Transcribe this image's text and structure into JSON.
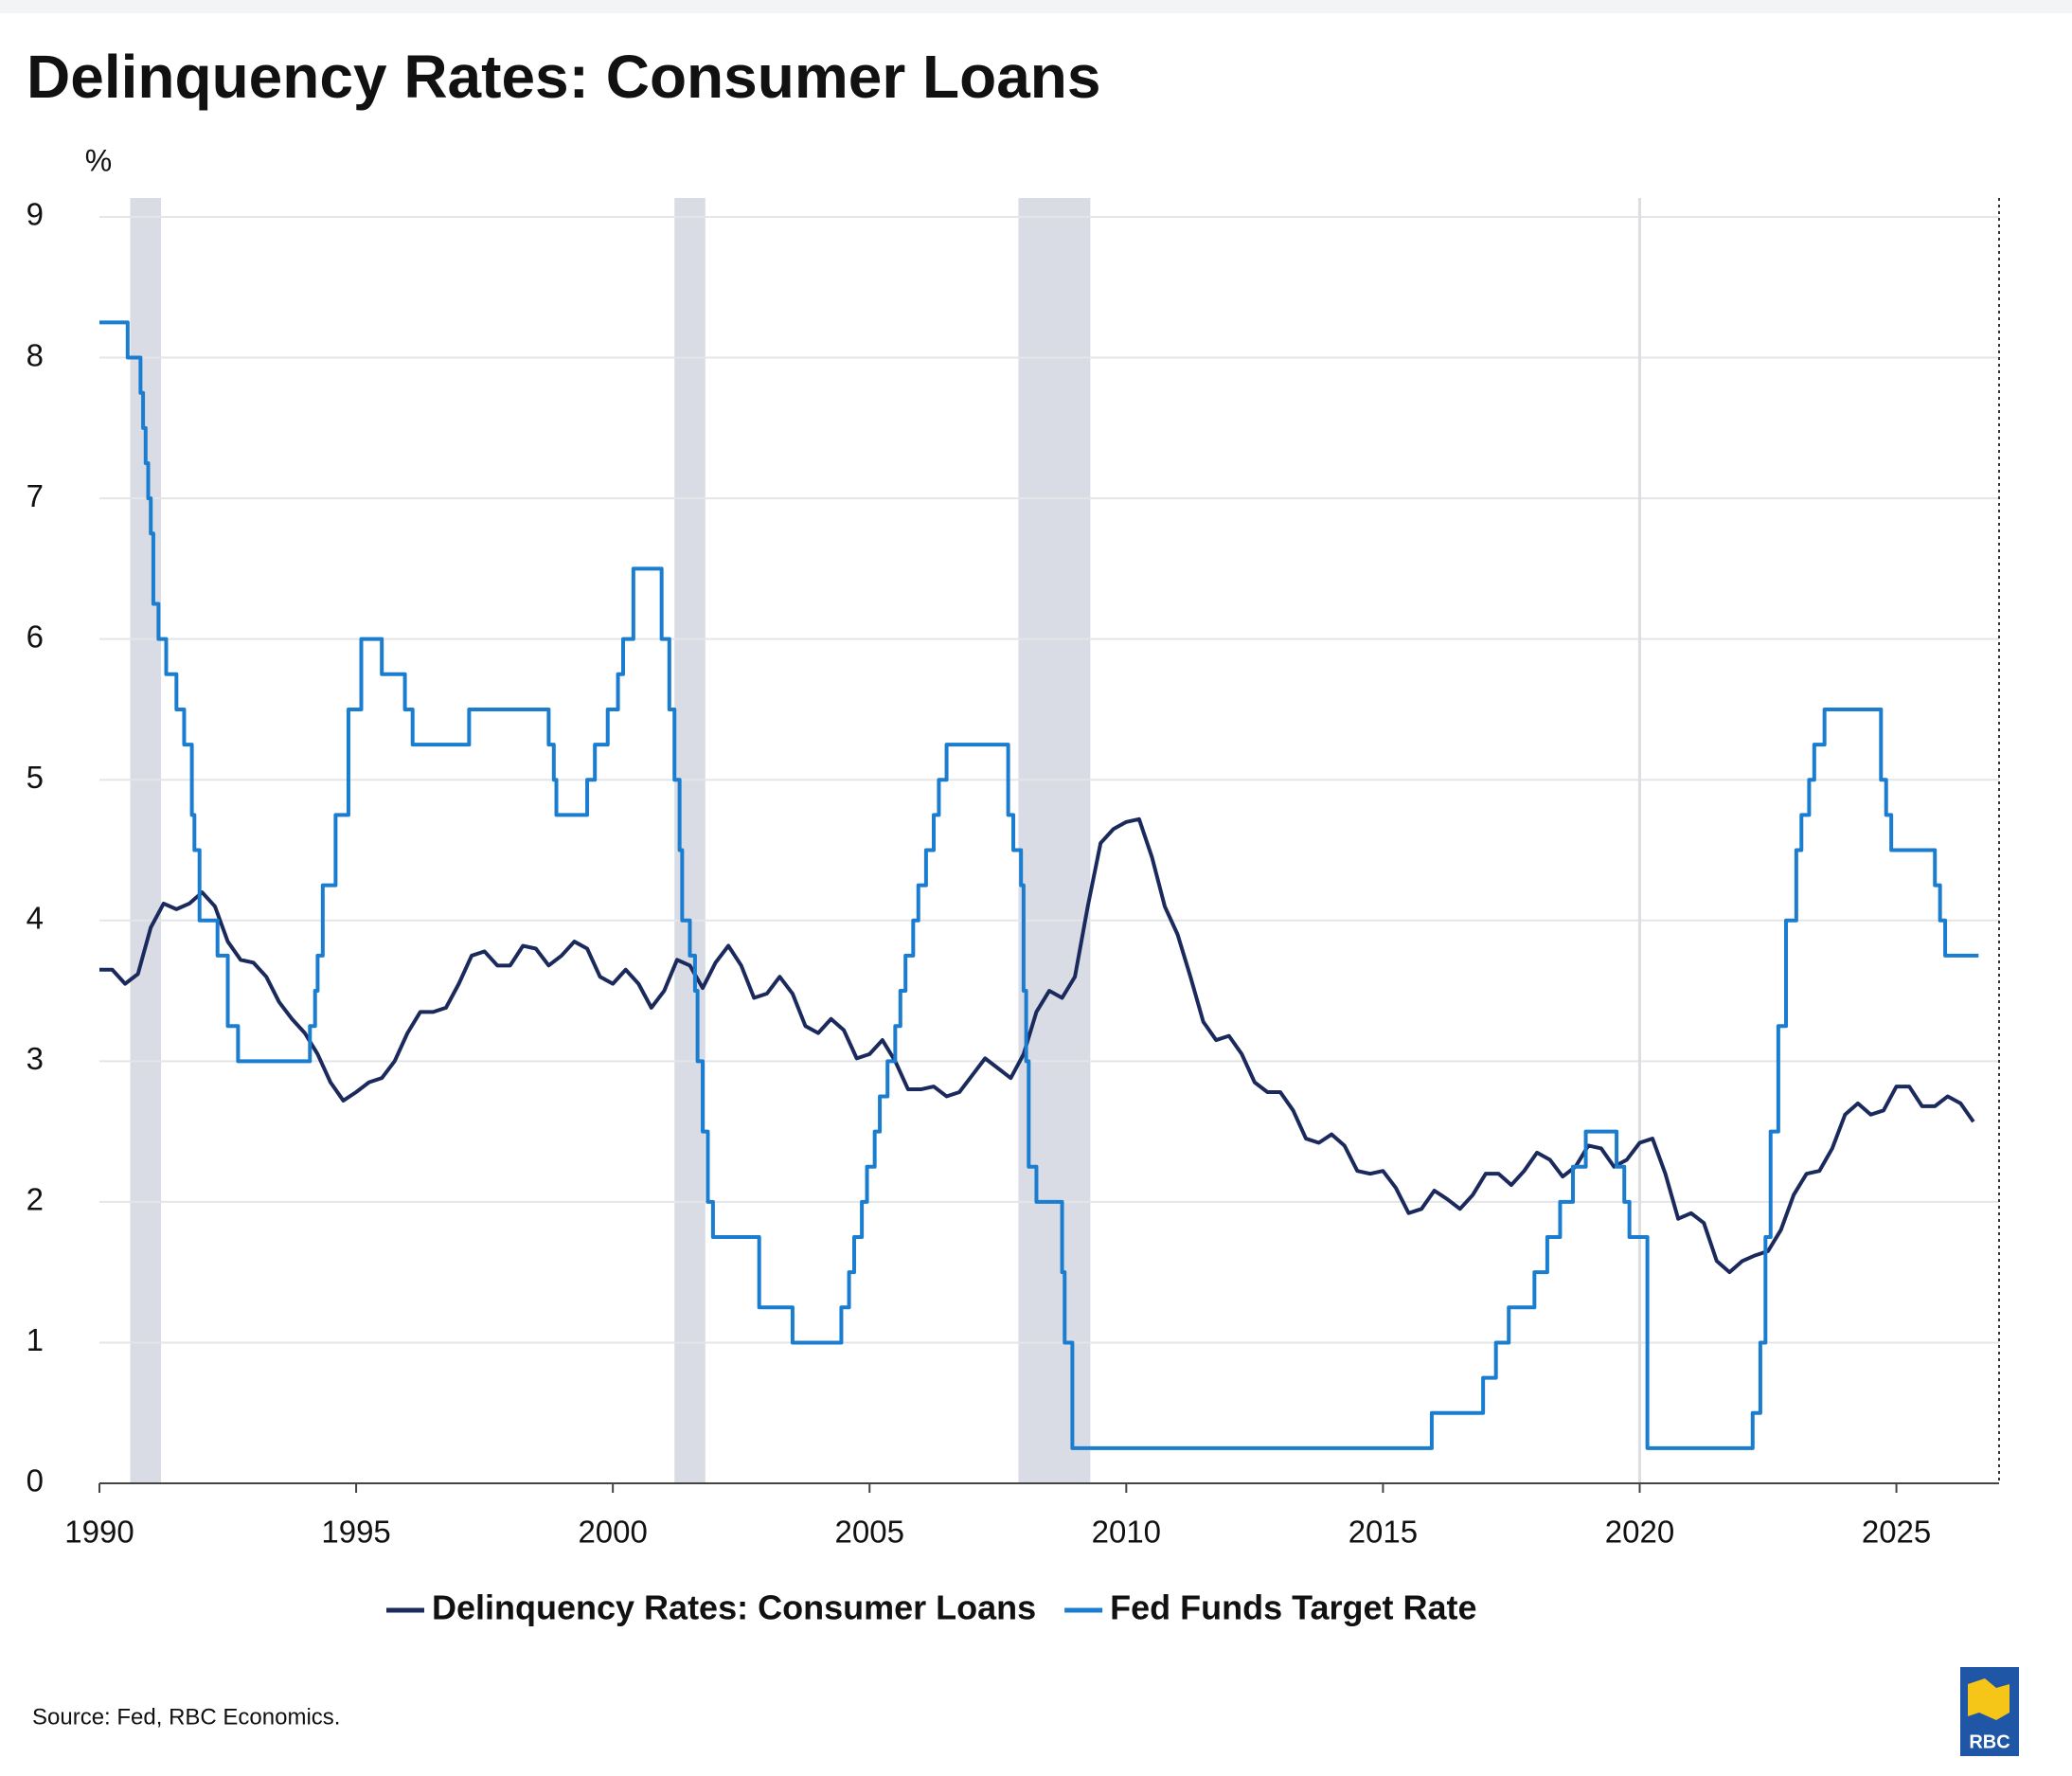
{
  "chart_data": {
    "type": "line",
    "title": "Delinquency Rates: Consumer Loans",
    "y_label": "%",
    "source": "Source: Fed, RBC Economics.",
    "logo": "RBC",
    "xlim": [
      1990,
      2027
    ],
    "xticks": [
      1990,
      1995,
      2000,
      2005,
      2010,
      2015,
      2020,
      2025
    ],
    "ylim": [
      0,
      9
    ],
    "yticks": [
      0,
      1,
      2,
      3,
      4,
      5,
      6,
      7,
      8,
      9
    ],
    "grid": true,
    "legend": "bottom",
    "shading_color": "#d9dce4",
    "recessions": [
      [
        1990.6,
        1991.2
      ],
      [
        2001.2,
        2001.8
      ],
      [
        2007.9,
        2009.3
      ]
    ],
    "vline": 2020,
    "series": [
      {
        "name": "Delinquency Rates: Consumer Loans",
        "color": "#1b2a5c",
        "x": [
          1990,
          1990.25,
          1990.5,
          1990.75,
          1991,
          1991.25,
          1991.5,
          1991.75,
          1992,
          1992.25,
          1992.5,
          1992.75,
          1993,
          1993.25,
          1993.5,
          1993.75,
          1994,
          1994.25,
          1994.5,
          1994.75,
          1995,
          1995.25,
          1995.5,
          1995.75,
          1996,
          1996.25,
          1996.5,
          1996.75,
          1997,
          1997.25,
          1997.5,
          1997.75,
          1998,
          1998.25,
          1998.5,
          1998.75,
          1999,
          1999.25,
          1999.5,
          1999.75,
          2000,
          2000.25,
          2000.5,
          2000.75,
          2001,
          2001.25,
          2001.5,
          2001.75,
          2002,
          2002.25,
          2002.5,
          2002.75,
          2003,
          2003.25,
          2003.5,
          2003.75,
          2004,
          2004.25,
          2004.5,
          2004.75,
          2005,
          2005.25,
          2005.5,
          2005.75,
          2006,
          2006.25,
          2006.5,
          2006.75,
          2007,
          2007.25,
          2007.5,
          2007.75,
          2008,
          2008.25,
          2008.5,
          2008.75,
          2009,
          2009.25,
          2009.5,
          2009.75,
          2010,
          2010.25,
          2010.5,
          2010.75,
          2011,
          2011.25,
          2011.5,
          2011.75,
          2012,
          2012.25,
          2012.5,
          2012.75,
          2013,
          2013.25,
          2013.5,
          2013.75,
          2014,
          2014.25,
          2014.5,
          2014.75,
          2015,
          2015.25,
          2015.5,
          2015.75,
          2016,
          2016.25,
          2016.5,
          2016.75,
          2017,
          2017.25,
          2017.5,
          2017.75,
          2018,
          2018.25,
          2018.5,
          2018.75,
          2019,
          2019.25,
          2019.5,
          2019.75,
          2020,
          2020.25,
          2020.5,
          2020.75,
          2021,
          2021.25,
          2021.5,
          2021.75,
          2022,
          2022.25,
          2022.5,
          2022.75,
          2023,
          2023.25,
          2023.5,
          2023.75,
          2024,
          2024.25,
          2024.5,
          2024.75,
          2025,
          2025.25,
          2025.5,
          2025.75,
          2026,
          2026.25,
          2026.5
        ],
        "values": [
          3.65,
          3.65,
          3.55,
          3.62,
          3.95,
          4.12,
          4.08,
          4.12,
          4.2,
          4.1,
          3.85,
          3.72,
          3.7,
          3.6,
          3.42,
          3.3,
          3.2,
          3.05,
          2.85,
          2.72,
          2.78,
          2.85,
          2.88,
          3.0,
          3.2,
          3.35,
          3.35,
          3.38,
          3.55,
          3.75,
          3.78,
          3.68,
          3.68,
          3.82,
          3.8,
          3.68,
          3.75,
          3.85,
          3.8,
          3.6,
          3.55,
          3.65,
          3.55,
          3.38,
          3.5,
          3.72,
          3.68,
          3.52,
          3.7,
          3.82,
          3.68,
          3.45,
          3.48,
          3.6,
          3.48,
          3.25,
          3.2,
          3.3,
          3.22,
          3.02,
          3.05,
          3.15,
          3.0,
          2.8,
          2.8,
          2.82,
          2.75,
          2.78,
          2.9,
          3.02,
          2.95,
          2.88,
          3.05,
          3.35,
          3.5,
          3.45,
          3.6,
          4.1,
          4.55,
          4.65,
          4.7,
          4.72,
          4.45,
          4.1,
          3.9,
          3.6,
          3.28,
          3.15,
          3.18,
          3.05,
          2.85,
          2.78,
          2.78,
          2.65,
          2.45,
          2.42,
          2.48,
          2.4,
          2.22,
          2.2,
          2.22,
          2.1,
          1.92,
          1.95,
          2.08,
          2.02,
          1.95,
          2.05,
          2.2,
          2.2,
          2.12,
          2.22,
          2.35,
          2.3,
          2.18,
          2.25,
          2.4,
          2.38,
          2.25,
          2.3,
          2.42,
          2.45,
          2.2,
          1.88,
          1.92,
          1.85,
          1.58,
          1.5,
          1.58,
          1.62,
          1.65,
          1.8,
          2.05,
          2.2,
          2.22,
          2.38,
          2.62,
          2.7,
          2.62,
          2.65,
          2.82,
          2.82,
          2.68,
          2.68,
          2.75,
          2.7,
          2.57
        ]
      },
      {
        "name": "Fed Funds Target Rate",
        "color": "#1a7dd0",
        "step": "post",
        "x": [
          1990,
          1990.55,
          1990.8,
          1990.85,
          1990.9,
          1990.95,
          1991,
          1991.05,
          1991.15,
          1991.3,
          1991.5,
          1991.65,
          1991.8,
          1991.85,
          1991.95,
          1992.3,
          1992.5,
          1992.7,
          1994.1,
          1994.2,
          1994.25,
          1994.35,
          1994.6,
          1994.85,
          1995.1,
          1995.5,
          1995.95,
          1996.1,
          1997.2,
          1998.75,
          1998.85,
          1998.9,
          1999.5,
          1999.65,
          1999.9,
          2000.1,
          2000.2,
          2000.4,
          2000.95,
          2001.1,
          2001.2,
          2001.3,
          2001.35,
          2001.5,
          2001.6,
          2001.65,
          2001.75,
          2001.85,
          2001.95,
          2002.85,
          2003.5,
          2004.45,
          2004.6,
          2004.7,
          2004.85,
          2004.95,
          2005.1,
          2005.2,
          2005.35,
          2005.5,
          2005.6,
          2005.7,
          2005.85,
          2005.95,
          2006.1,
          2006.25,
          2006.35,
          2006.5,
          2007.7,
          2007.8,
          2007.95,
          2008,
          2008.05,
          2008.1,
          2008.25,
          2008.75,
          2008.8,
          2008.95,
          2015.95,
          2016.95,
          2017.2,
          2017.45,
          2017.95,
          2018.2,
          2018.45,
          2018.7,
          2018.95,
          2019.55,
          2019.7,
          2019.8,
          2020.15,
          2022.2,
          2022.35,
          2022.45,
          2022.55,
          2022.7,
          2022.85,
          2023.05,
          2023.15,
          2023.3,
          2023.4,
          2023.6,
          2024.7,
          2024.8,
          2024.9,
          2025.75,
          2025.85,
          2025.95,
          2026.6
        ],
        "values": [
          8.25,
          8.0,
          7.75,
          7.5,
          7.25,
          7.0,
          6.75,
          6.25,
          6.0,
          5.75,
          5.5,
          5.25,
          4.75,
          4.5,
          4.0,
          3.75,
          3.25,
          3.0,
          3.25,
          3.5,
          3.75,
          4.25,
          4.75,
          5.5,
          6.0,
          5.75,
          5.5,
          5.25,
          5.5,
          5.25,
          5.0,
          4.75,
          5.0,
          5.25,
          5.5,
          5.75,
          6.0,
          6.5,
          6.0,
          5.5,
          5.0,
          4.5,
          4.0,
          3.75,
          3.5,
          3.0,
          2.5,
          2.0,
          1.75,
          1.25,
          1.0,
          1.25,
          1.5,
          1.75,
          2.0,
          2.25,
          2.5,
          2.75,
          3.0,
          3.25,
          3.5,
          3.75,
          4.0,
          4.25,
          4.5,
          4.75,
          5.0,
          5.25,
          4.75,
          4.5,
          4.25,
          3.5,
          3.0,
          2.25,
          2.0,
          1.5,
          1.0,
          0.25,
          0.5,
          0.75,
          1.0,
          1.25,
          1.5,
          1.75,
          2.0,
          2.25,
          2.5,
          2.25,
          2.0,
          1.75,
          0.25,
          0.5,
          1.0,
          1.75,
          2.5,
          3.25,
          4.0,
          4.5,
          4.75,
          5.0,
          5.25,
          5.5,
          5.0,
          4.75,
          4.5,
          4.25,
          4.0,
          3.75,
          3.75
        ]
      }
    ]
  }
}
